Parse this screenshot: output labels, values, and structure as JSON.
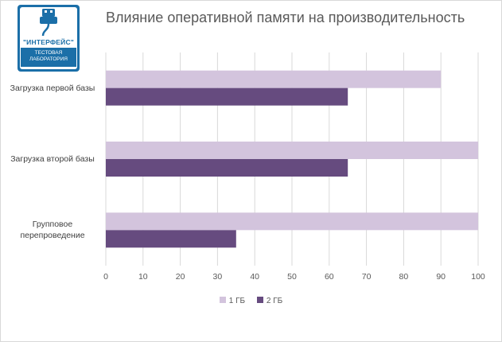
{
  "logo": {
    "brand": "\"ИНТЕРФЕЙС\"",
    "line1": "ТЕСТОВАЯ",
    "line2": "ЛАБОРАТОРИЯ",
    "icon": "usb-plug-icon"
  },
  "colors": {
    "series1": "#d3c4dd",
    "series2": "#664b7f",
    "grid": "#d9d9d9",
    "text": "#595959",
    "logo": "#1b6fa8"
  },
  "chart_data": {
    "type": "bar",
    "orientation": "horizontal",
    "title": "Влияние оперативной памяти на производительность",
    "categories": [
      "Загрузка первой базы",
      "Загрузка второй базы",
      "Групповое перепроведение"
    ],
    "series": [
      {
        "name": "1 ГБ",
        "values": [
          90,
          100,
          100
        ]
      },
      {
        "name": "2 ГБ",
        "values": [
          65,
          65,
          35
        ]
      }
    ],
    "xlim": [
      0,
      100
    ],
    "xticks": [
      0,
      10,
      20,
      30,
      40,
      50,
      60,
      70,
      80,
      90,
      100
    ],
    "grid": true,
    "legend": "bottom"
  }
}
